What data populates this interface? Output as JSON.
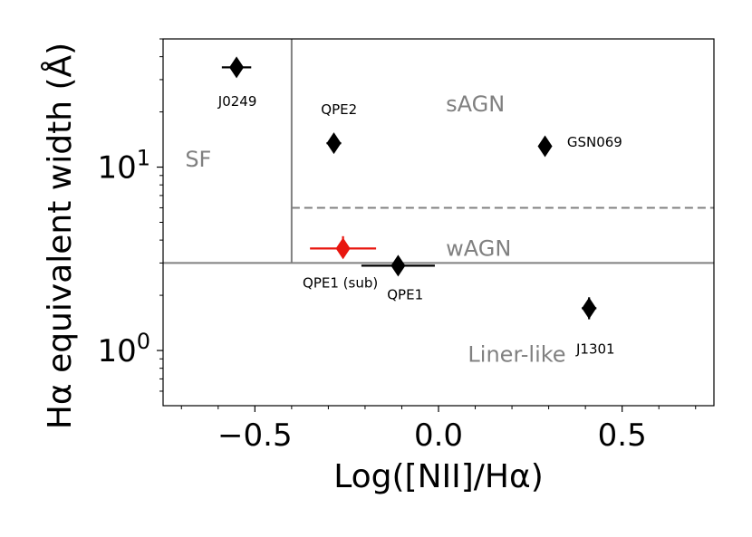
{
  "chart_data": {
    "type": "scatter",
    "xlabel": "Log([NII]/Hα)",
    "ylabel": "Hα equivalent width (Å)",
    "xlim": [
      -0.75,
      0.75
    ],
    "ylim": [
      0.5,
      50
    ],
    "yscale": "log",
    "grid": false,
    "xticks": [
      {
        "value": -0.5,
        "label": "−0.5"
      },
      {
        "value": 0.0,
        "label": "0.0"
      },
      {
        "value": 0.5,
        "label": "0.5"
      }
    ],
    "yticks": [
      {
        "value": 1,
        "base": "10",
        "exp": "0"
      },
      {
        "value": 10,
        "base": "10",
        "exp": "1"
      }
    ],
    "region_labels": [
      {
        "text": "SF",
        "x": -0.69,
        "y": 11
      },
      {
        "text": "sAGN",
        "x": 0.02,
        "y": 22
      },
      {
        "text": "wAGN",
        "x": 0.02,
        "y": 3.6
      },
      {
        "text": "Liner-like",
        "x": 0.08,
        "y": 0.95
      }
    ],
    "points": [
      {
        "name": "J0249",
        "x": -0.55,
        "y": 35,
        "xerr": 0.04,
        "yerr": [
          0,
          0
        ],
        "color": "#000000",
        "label_x": -0.6,
        "label_y": 21.5,
        "label_anchor": "start"
      },
      {
        "name": "QPE2",
        "x": -0.285,
        "y": 13.5,
        "xerr": 0.02,
        "yerr": [
          0.9,
          0.9
        ],
        "color": "#000000",
        "label_x": -0.32,
        "label_y": 19.5,
        "label_anchor": "start"
      },
      {
        "name": "GSN069",
        "x": 0.29,
        "y": 13,
        "xerr": 0,
        "yerr": [
          0,
          0
        ],
        "color": "#000000",
        "label_x": 0.35,
        "label_y": 12.9,
        "label_anchor": "start"
      },
      {
        "name": "QPE1 (sub)",
        "x": -0.26,
        "y": 3.6,
        "xerr": 0.09,
        "yerr": [
          0.3,
          0.6
        ],
        "color": "#e8160f",
        "label_x": -0.37,
        "label_y": 2.2,
        "label_anchor": "start"
      },
      {
        "name": "QPE1",
        "x": -0.11,
        "y": 2.9,
        "xerr": 0.1,
        "yerr": [
          0.2,
          0.2
        ],
        "color": "#000000",
        "label_x": -0.14,
        "label_y": 1.9,
        "label_anchor": "start"
      },
      {
        "name": "J1301",
        "x": 0.41,
        "y": 1.7,
        "xerr": 0.02,
        "yerr": [
          0.22,
          0.25
        ],
        "color": "#000000",
        "label_x": 0.375,
        "label_y": 0.96,
        "label_anchor": "start"
      }
    ],
    "divider_lines": [
      {
        "style": "solid",
        "x1": -0.4,
        "y1": 50,
        "x2": -0.4,
        "y2": 3
      },
      {
        "style": "solid",
        "x1": -0.75,
        "y1": 3,
        "x2": 0.75,
        "y2": 3
      },
      {
        "style": "dashed",
        "x1": -0.4,
        "y1": 6,
        "x2": 0.75,
        "y2": 6
      }
    ],
    "colors": {
      "lines": "#808080",
      "region_text": "#808080",
      "highlight": "#e8160f"
    }
  }
}
